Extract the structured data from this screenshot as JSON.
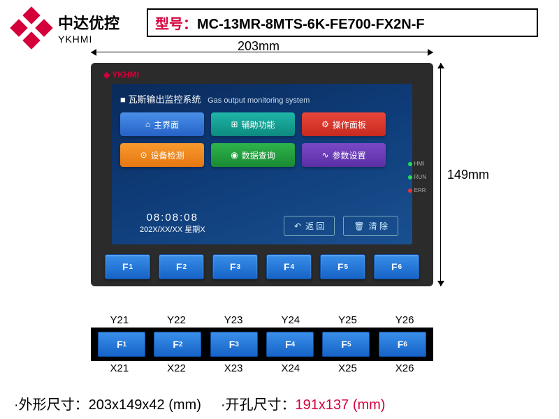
{
  "logo": {
    "cn": "中达优控",
    "en": "YKHMI"
  },
  "model": {
    "label": "型号：",
    "value": "MC-13MR-8MTS-6K-FE700-FX2N-F"
  },
  "dims": {
    "width": "203mm",
    "height": "149mm"
  },
  "hmi": {
    "brand": "YKHMI",
    "title_cn": "瓦斯输出监控系统",
    "title_en": "Gas output monitoring system",
    "buttons": [
      {
        "icon": "⌂",
        "label": "主界面",
        "cls": "c-blue"
      },
      {
        "icon": "⊞",
        "label": "辅助功能",
        "cls": "c-teal"
      },
      {
        "icon": "⚙",
        "label": "操作面板",
        "cls": "c-red"
      },
      {
        "icon": "⊙",
        "label": "设备检测",
        "cls": "c-orange"
      },
      {
        "icon": "◉",
        "label": "数据查询",
        "cls": "c-grn"
      },
      {
        "icon": "∿",
        "label": "参数设置",
        "cls": "c-pur"
      }
    ],
    "time": "08:08:08",
    "date": "202X/XX/XX 星期X",
    "back": {
      "icon": "↶",
      "label": "返 回"
    },
    "clear": {
      "icon": "🗑",
      "label": "清 除"
    },
    "leds": [
      "HMI",
      "RUN",
      "ERR"
    ],
    "fkeys": [
      "F1",
      "F2",
      "F3",
      "F4",
      "F5",
      "F6"
    ]
  },
  "pins": {
    "top": [
      "Y21",
      "Y22",
      "Y23",
      "Y24",
      "Y25",
      "Y26"
    ],
    "keys": [
      "F1",
      "F2",
      "F3",
      "F4",
      "F5",
      "F6"
    ],
    "bot": [
      "X21",
      "X22",
      "X23",
      "X24",
      "X25",
      "X26"
    ]
  },
  "spec": {
    "shape_lbl": "·外形尺寸：",
    "shape_val": "203x149x42 (mm)",
    "hole_lbl": "·开孔尺寸：",
    "hole_val": "191x137 (mm)"
  }
}
